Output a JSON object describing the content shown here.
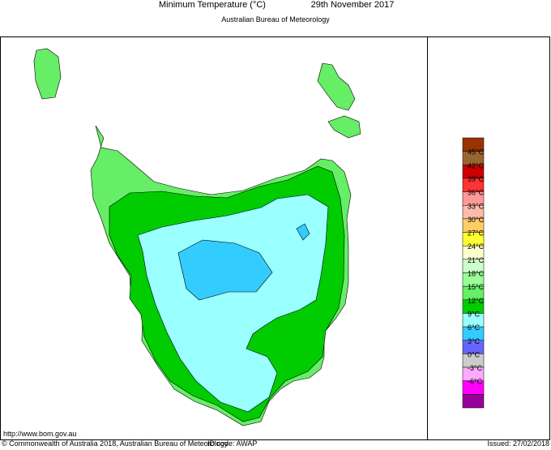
{
  "header": {
    "title": "Minimum Temperature (°C)",
    "date": "29th November 2017",
    "subtitle": "Australian Bureau of Meteorology"
  },
  "legend": {
    "labels": [
      "45°C",
      "42°C",
      "39°C",
      "36°C",
      "33°C",
      "30°C",
      "27°C",
      "24°C",
      "21°C",
      "18°C",
      "15°C",
      "12°C",
      "9°C",
      "6°C",
      "3°C",
      "0°C",
      "-3°C",
      "-6°C"
    ],
    "colors": [
      "#993300",
      "#996633",
      "#cc0000",
      "#ff3333",
      "#ff9999",
      "#ffbbaa",
      "#ffcc66",
      "#ffff33",
      "#ffffcc",
      "#ccffcc",
      "#99ff99",
      "#66ee66",
      "#00cc00",
      "#99ffff",
      "#33ccff",
      "#6666ff",
      "#cccccc",
      "#ffaaff",
      "#ff00ff",
      "#990099"
    ]
  },
  "footer": {
    "url": "http://www.bom.gov.au",
    "copyright": "© Commonwealth of Australia 2018, Australian Bureau of Meteorology",
    "id_code": "ID code: AWAP",
    "issued": "Issued: 27/02/2018"
  }
}
